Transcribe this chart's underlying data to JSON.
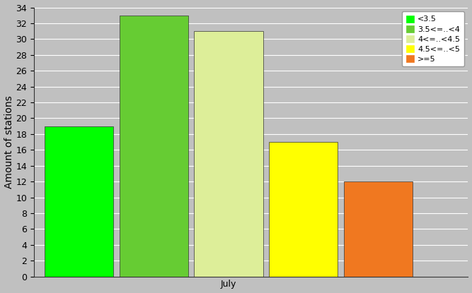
{
  "bars": [
    {
      "label": "<3.5",
      "value": 19,
      "color": "#00FF00"
    },
    {
      "label": "3.5<=..<4",
      "value": 33,
      "color": "#66CC33"
    },
    {
      "label": "4<=..<4.5",
      "value": 31,
      "color": "#DDEE99"
    },
    {
      "label": "4.5<=..<5",
      "value": 17,
      "color": "#FFFF00"
    },
    {
      "label": ">=5",
      "value": 12,
      "color": "#F07820"
    }
  ],
  "ylabel": "Amount of stations",
  "xlabel": "July",
  "ylim": [
    0,
    34
  ],
  "yticks": [
    0,
    2,
    4,
    6,
    8,
    10,
    12,
    14,
    16,
    18,
    20,
    22,
    24,
    26,
    28,
    30,
    32,
    34
  ],
  "background_color": "#C0C0C0",
  "plot_bg_color": "#C0C0C0",
  "grid_color": "#FFFFFF",
  "legend_fontsize": 8,
  "ylabel_fontsize": 10,
  "xlabel_fontsize": 10,
  "tick_fontsize": 9
}
